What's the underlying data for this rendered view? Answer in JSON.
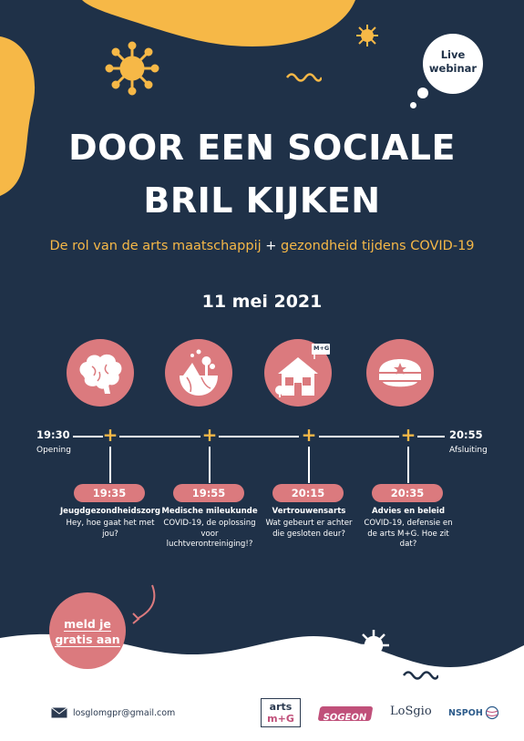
{
  "title_line1": "DOOR EEN SOCIALE",
  "title_line2": "BRIL KIJKEN",
  "subtitle_part1": "De rol van de arts maatschappij",
  "subtitle_plus": "+",
  "subtitle_part2": "gezondheid tijdens COVID-19",
  "date": "11 mei 2021",
  "live_line1": "Live",
  "live_line2": "webinar",
  "start": {
    "time": "19:30",
    "label": "Opening"
  },
  "end": {
    "time": "20:55",
    "label": "Afsluiting"
  },
  "sessions": [
    {
      "time": "19:35",
      "title": "Jeugdgezondheidszorg",
      "desc": "Hey, hoe gaat het met jou?",
      "icon": "brain-icon"
    },
    {
      "time": "19:55",
      "title": "Medische mileukunde",
      "desc": "COVID-19, de oplossing voor luchtverontreiniging!?",
      "icon": "earth-icon"
    },
    {
      "time": "20:15",
      "title": "Vertrouwensarts",
      "desc": "Wat gebeurt er achter die gesloten deur?",
      "icon": "house-icon"
    },
    {
      "time": "20:35",
      "title": "Advies en beleid",
      "desc": "COVID-19, defensie en de arts M+G. Hoe zit dat?",
      "icon": "military-cap-icon"
    }
  ],
  "house_sign": "M+G",
  "cta_line1": "meld je",
  "cta_line2": "gratis aan",
  "email": "losglomgpr@gmail.com",
  "logos": {
    "arts_top": "arts",
    "arts_bottom": "m+G",
    "sogeon": "SOGEON",
    "losgio": "LoSgio",
    "nspoh": "NSPOH"
  },
  "colors": {
    "navy": "#1f3148",
    "pink": "#db7a7e",
    "orange": "#f6b847",
    "white": "#ffffff"
  }
}
